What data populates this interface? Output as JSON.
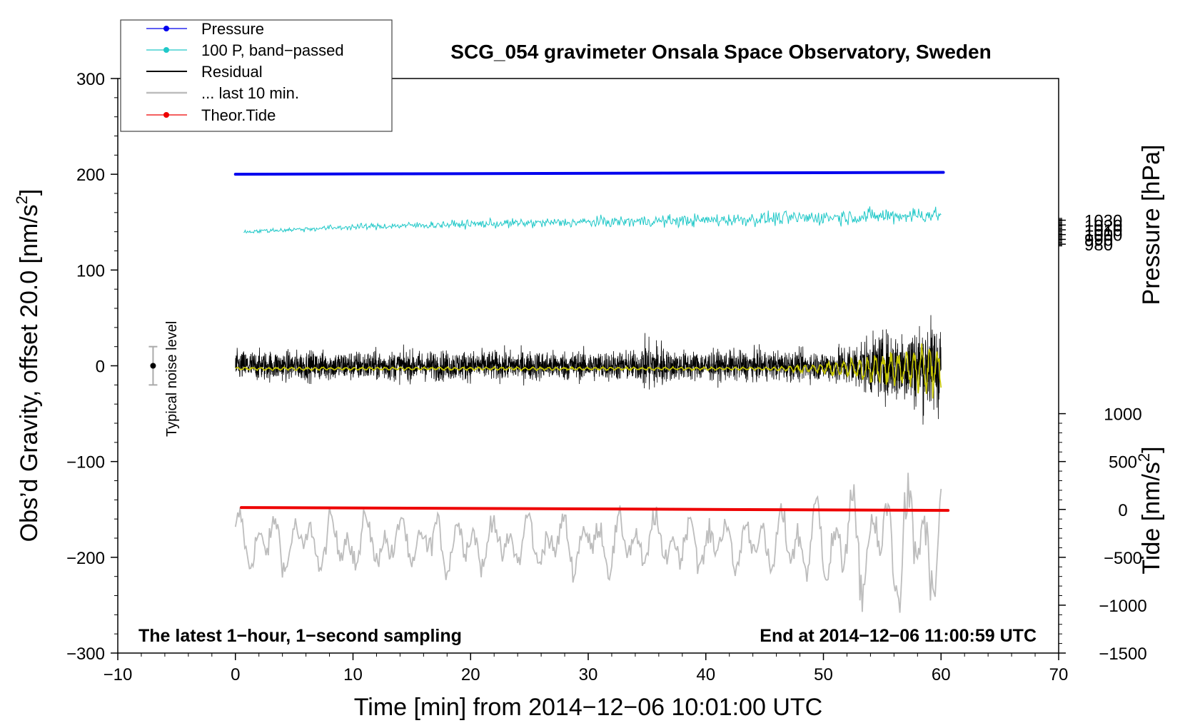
{
  "chart_data": {
    "type": "line",
    "title": "SCG_054 gravimeter Onsala Space Observatory, Sweden",
    "xlabel": "Time [min] from 2014−12−06 10:01:00 UTC",
    "ylabel_left_main": "Obs’d Gravity, offset 20.0 [nm/s",
    "ylabel_left_sup": "2",
    "ylabel_left_close": "]",
    "ylabel_right_pressure": "Pressure [hPa]",
    "ylabel_right_tide_main": "Tide [nm/s",
    "ylabel_right_tide_sup": "2",
    "ylabel_right_tide_close": "]",
    "xlim": [
      -10,
      70
    ],
    "ylim": [
      -300,
      300
    ],
    "x_ticks": [
      -10,
      0,
      10,
      20,
      30,
      40,
      50,
      60,
      70
    ],
    "x_tick_labels": [
      "−10",
      "0",
      "10",
      "20",
      "30",
      "40",
      "50",
      "60",
      "70"
    ],
    "y_ticks": [
      -300,
      -200,
      -100,
      0,
      100,
      200,
      300
    ],
    "y_tick_labels": [
      "−300",
      "−200",
      "−100",
      "0",
      "100",
      "200",
      "300"
    ],
    "pressure_axis": {
      "ticks": [
        980,
        990,
        1000,
        1010,
        1020,
        1030
      ],
      "tick_labels": [
        "980",
        "990",
        "1000",
        "1010",
        "1020",
        "1030"
      ],
      "gravity_at_1000": 137,
      "gravity_per_hpa": -0.5
    },
    "tide_axis": {
      "ticks": [
        -1500,
        -1000,
        -500,
        0,
        500,
        1000
      ],
      "tick_labels": [
        "−1500",
        "−1000",
        "−500",
        "0",
        "500",
        "1000"
      ],
      "gravity_at_0": -150,
      "gravity_per_unit": 0.1
    },
    "annotations": {
      "bottom_left": "The latest 1−hour, 1−second sampling",
      "bottom_right": "End at 2014−12−06 11:00:59 UTC",
      "noise_label": "Typical noise level"
    },
    "noise_bar": {
      "x": -7,
      "center": 0,
      "half_range": 20
    },
    "legend": {
      "position": "top-left",
      "entries": [
        {
          "label": "Pressure",
          "color": "#0000ee",
          "marker": true
        },
        {
          "label": "100 P, band−passed",
          "color": "#20c8c8",
          "marker": true
        },
        {
          "label": "Residual",
          "color": "#000000",
          "marker": false
        },
        {
          "label": "... last 10 min.",
          "color": "#bdbdbd",
          "marker": false
        },
        {
          "label": "Theor.Tide",
          "color": "#ee0000",
          "marker": true
        }
      ]
    },
    "series": [
      {
        "name": "Pressure",
        "color": "#0000ee",
        "x": [
          0,
          60.2
        ],
        "y": [
          200,
          202
        ]
      },
      {
        "name": "100 P, band−passed",
        "color": "#20c8c8",
        "x": [
          0.7,
          10,
          20,
          30,
          40,
          50,
          60
        ],
        "y": [
          140,
          145,
          148,
          150,
          152,
          155,
          158
        ]
      },
      {
        "name": "Residual",
        "color": "#000000",
        "x": [
          0,
          60
        ],
        "y": [
          0,
          0
        ]
      },
      {
        "name": "Residual (smoothed)",
        "color": "#c8c800",
        "x": [
          0,
          60
        ],
        "y": [
          -3,
          -3
        ]
      },
      {
        "name": "... last 10 min.",
        "color": "#bdbdbd",
        "x": [
          0,
          60
        ],
        "y": [
          -185,
          -185
        ]
      },
      {
        "name": "Theor.Tide",
        "color": "#ee0000",
        "x": [
          0.5,
          60.6
        ],
        "y": [
          -148,
          -151
        ]
      }
    ]
  }
}
